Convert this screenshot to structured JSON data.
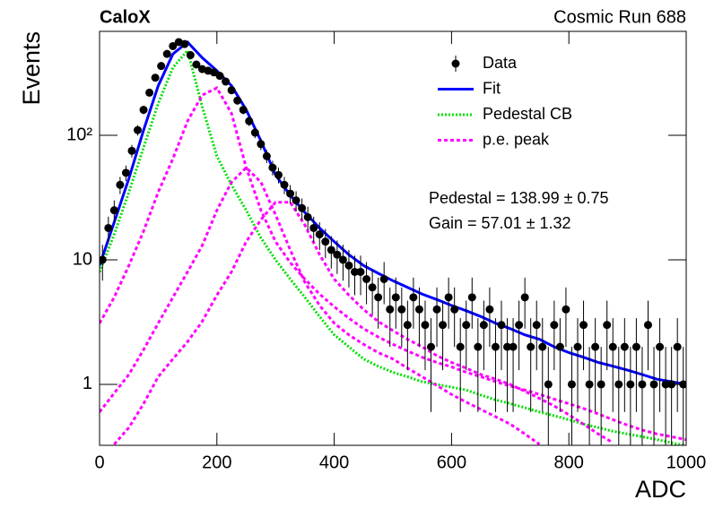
{
  "chart_data": {
    "type": "scatter",
    "title": "CaloX",
    "subtitle": "Cosmic Run 688",
    "xlabel": "ADC",
    "ylabel": "Events",
    "xlim": [
      0,
      1000
    ],
    "ylim": [
      0.324,
      683
    ],
    "log_y": true,
    "grid": false,
    "legend": "top-right",
    "xticks": [
      0,
      200,
      400,
      600,
      800,
      1000
    ],
    "yticks": [
      1,
      10,
      {
        "value": 100,
        "label": "10²"
      }
    ],
    "annotations": [
      "Pedestal = 138.99 ± 0.75",
      "Gain = 57.01 ± 1.32"
    ],
    "series": [
      {
        "name": "Data",
        "type": "points",
        "color": "#000000",
        "x": [
          5,
          15,
          25,
          35,
          45,
          55,
          65,
          75,
          85,
          95,
          105,
          115,
          125,
          135,
          145,
          155,
          165,
          175,
          185,
          195,
          205,
          215,
          225,
          235,
          245,
          255,
          265,
          275,
          285,
          295,
          305,
          315,
          325,
          335,
          345,
          355,
          365,
          375,
          385,
          395,
          405,
          415,
          425,
          435,
          445,
          455,
          465,
          475,
          485,
          495,
          505,
          515,
          525,
          535,
          545,
          555,
          565,
          575,
          585,
          595,
          605,
          615,
          625,
          635,
          645,
          655,
          665,
          675,
          685,
          695,
          705,
          715,
          725,
          735,
          745,
          755,
          765,
          775,
          785,
          795,
          805,
          815,
          825,
          835,
          845,
          855,
          865,
          875,
          885,
          895,
          905,
          915,
          925,
          935,
          945,
          955,
          965,
          975,
          985,
          995
        ],
        "values": [
          10,
          18,
          25,
          40,
          50,
          75,
          110,
          160,
          220,
          290,
          360,
          450,
          520,
          560,
          540,
          440,
          370,
          340,
          330,
          320,
          300,
          270,
          230,
          190,
          160,
          130,
          105,
          85,
          68,
          55,
          48,
          40,
          34,
          30,
          26,
          22,
          18,
          16,
          14,
          12,
          11,
          10,
          9,
          8,
          8,
          7,
          6,
          5,
          7,
          4,
          5,
          4,
          3,
          5,
          4,
          3,
          2,
          4,
          3,
          5,
          4,
          2,
          3,
          5,
          2,
          3,
          4,
          2,
          3,
          2,
          2,
          3,
          5,
          2,
          3,
          2,
          1,
          3,
          2,
          4,
          1,
          2,
          3,
          1,
          2,
          1,
          3,
          2,
          1,
          2,
          1,
          2,
          1,
          3,
          1,
          2,
          1,
          1,
          2,
          1
        ],
        "errors": [
          3.2,
          4.2,
          5,
          6.3,
          7.1,
          8.7,
          10.5,
          12.6,
          14.8,
          17,
          19,
          21.2,
          22.8,
          23.7,
          23.2,
          21,
          19.2,
          18.4,
          18.2,
          17.9,
          17.3,
          16.4,
          15.2,
          13.8,
          12.6,
          11.4,
          10.2,
          9.2,
          8.2,
          7.4,
          6.9,
          6.3,
          5.8,
          5.5,
          5.1,
          4.7,
          4.2,
          4,
          3.7,
          3.5,
          3.3,
          3.2,
          3,
          2.8,
          2.8,
          2.6,
          2.4,
          2.2,
          2.6,
          2,
          2.2,
          2,
          1.7,
          2.2,
          2,
          1.7,
          1.4,
          2,
          1.7,
          2.2,
          2,
          1.4,
          1.7,
          2.2,
          1.4,
          1.7,
          2,
          1.4,
          1.7,
          1.4,
          1.4,
          1.7,
          2.2,
          1.4,
          1.7,
          1.4,
          1,
          1.7,
          1.4,
          2,
          1,
          1.4,
          1.7,
          1,
          1.4,
          1,
          1.7,
          1.4,
          1,
          1.4,
          1,
          1.4,
          1,
          1.7,
          1,
          1.4,
          1,
          1,
          1.4,
          1
        ]
      },
      {
        "name": "Fit",
        "type": "line",
        "color": "#0000ff",
        "line_style": "solid",
        "x": [
          0,
          25,
          50,
          75,
          100,
          125,
          150,
          175,
          200,
          225,
          250,
          275,
          300,
          325,
          350,
          375,
          400,
          425,
          450,
          475,
          500,
          525,
          550,
          575,
          600,
          625,
          650,
          675,
          700,
          725,
          750,
          775,
          800,
          825,
          850,
          875,
          900,
          925,
          950,
          975,
          1000
        ],
        "values": [
          9,
          20,
          45,
          110,
          250,
          450,
          560,
          420,
          330,
          250,
          160,
          90,
          48,
          33,
          24,
          18,
          14,
          11,
          9,
          7.8,
          6.8,
          6,
          5.3,
          4.8,
          4.3,
          3.9,
          3.5,
          3.1,
          2.8,
          2.5,
          2.3,
          2.0,
          1.8,
          1.65,
          1.5,
          1.4,
          1.3,
          1.2,
          1.1,
          1.05,
          1.0
        ]
      },
      {
        "name": "Pedestal CB",
        "type": "line",
        "color": "#00e000",
        "line_style": "dotted",
        "x": [
          0,
          25,
          50,
          75,
          100,
          125,
          150,
          175,
          200,
          225,
          250,
          275,
          300,
          325,
          350,
          375,
          400,
          425,
          450,
          475,
          500,
          525,
          550,
          575,
          600,
          625,
          650,
          675,
          700,
          725,
          750,
          775,
          800,
          825,
          850,
          875,
          900,
          925,
          950,
          975,
          1000
        ],
        "values": [
          8,
          16,
          35,
          80,
          180,
          350,
          480,
          170,
          68,
          40,
          25,
          15,
          10,
          7,
          5,
          3.5,
          2.5,
          2.0,
          1.6,
          1.4,
          1.25,
          1.15,
          1.05,
          1.0,
          0.95,
          0.9,
          0.82,
          0.75,
          0.7,
          0.65,
          0.6,
          0.56,
          0.52,
          0.48,
          0.45,
          0.42,
          0.4,
          0.38,
          0.36,
          0.34,
          0.32
        ]
      },
      {
        "name": "p.e. peak",
        "type": "line",
        "color": "#ff00ff",
        "line_style": "dashed",
        "x": [
          0,
          25,
          50,
          75,
          100,
          125,
          150,
          175,
          200,
          225,
          250,
          275,
          300,
          325,
          350,
          375,
          400,
          425,
          450,
          475,
          500,
          525,
          550,
          575,
          600,
          625,
          650,
          675,
          700,
          725,
          750,
          775,
          800,
          825,
          850,
          875,
          900,
          925,
          950,
          975,
          1000
        ],
        "values": [
          3.1,
          5,
          9,
          17,
          35,
          65,
          130,
          210,
          240,
          150,
          55,
          25,
          14,
          9.5,
          7,
          5.3,
          4.2,
          3.4,
          2.8,
          2.4,
          2.1,
          1.85,
          1.65,
          1.5,
          1.38,
          1.25,
          1.15,
          1.05,
          0.97,
          0.9,
          0.83,
          0.76,
          0.7,
          0.64,
          0.58,
          0.52,
          0.47,
          0.43,
          0.4,
          0.38,
          0.36
        ]
      },
      {
        "type": "line",
        "color": "#ff00ff",
        "line_style": "dashed",
        "x": [
          0,
          25,
          50,
          75,
          100,
          125,
          150,
          175,
          200,
          225,
          250,
          275,
          300,
          325,
          350,
          375,
          400,
          425,
          450,
          475,
          500,
          525,
          550,
          575,
          600,
          625,
          650,
          675,
          700,
          725,
          750,
          775,
          800,
          825,
          850,
          875,
          900,
          925,
          950,
          975,
          1000
        ],
        "values": [
          0.6,
          0.85,
          1.2,
          1.9,
          3.1,
          5,
          8,
          13,
          25,
          42,
          55,
          42,
          23,
          12,
          6.6,
          4.3,
          3.1,
          2.5,
          2.1,
          1.8,
          1.6,
          1.35,
          1.15,
          0.98,
          0.83,
          0.72,
          0.63,
          0.55,
          0.48,
          0.4,
          0.33,
          null,
          null,
          null,
          null,
          null,
          null,
          null,
          null,
          null,
          null
        ]
      },
      {
        "type": "line",
        "color": "#ff00ff",
        "line_style": "dashed",
        "x": [
          0,
          25,
          50,
          75,
          100,
          125,
          150,
          175,
          200,
          225,
          250,
          275,
          300,
          325,
          350,
          375,
          400,
          425,
          450,
          475,
          500,
          525,
          550,
          575,
          600,
          625,
          650,
          675,
          700,
          725,
          750,
          775,
          800,
          825,
          850,
          875,
          900,
          925,
          950,
          975,
          1000
        ],
        "values": [
          null,
          0.33,
          0.45,
          0.7,
          1.15,
          1.6,
          2.2,
          3.2,
          5.2,
          8,
          14,
          21,
          29,
          29,
          19,
          11,
          7,
          5.2,
          4,
          3.2,
          2.7,
          2.3,
          2.0,
          1.7,
          1.5,
          1.35,
          1.2,
          1.1,
          1.0,
          0.88,
          0.77,
          0.67,
          0.57,
          0.48,
          0.4,
          0.34,
          null,
          null,
          null,
          null,
          null
        ]
      }
    ]
  }
}
